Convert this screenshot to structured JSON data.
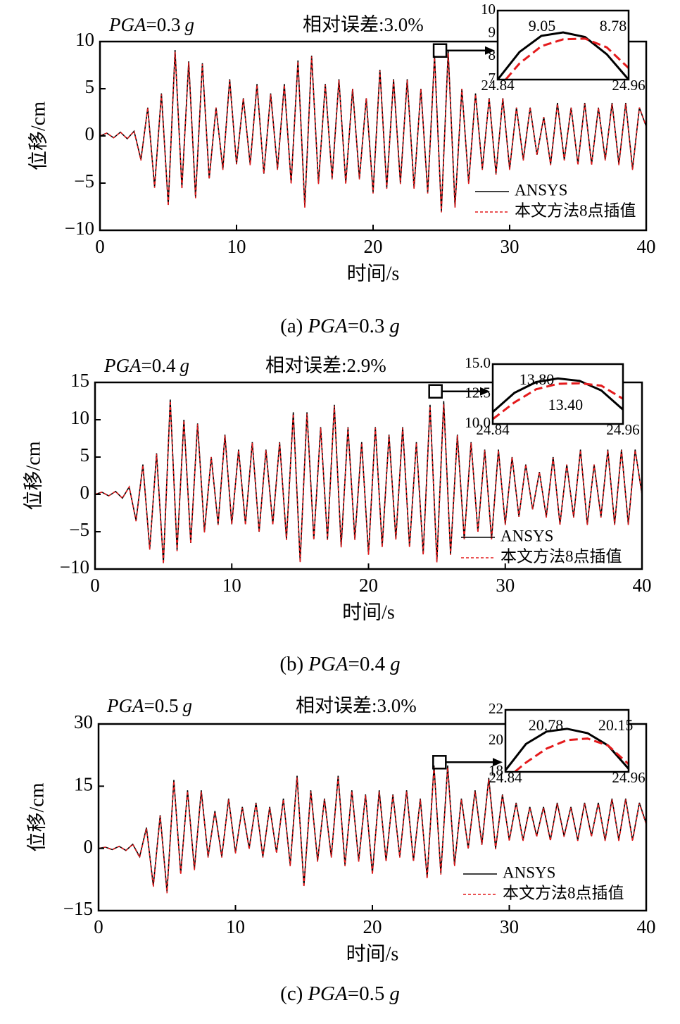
{
  "chart_data": [
    {
      "type": "line",
      "annotations": {
        "pga": {
          "var": "PGA",
          "rest": "=0.3",
          "unit": "g"
        },
        "error": "相对误差:3.0%"
      },
      "caption": {
        "label": "(a)",
        "var": "PGA",
        "rest": "=0.3",
        "unit": "g"
      },
      "xlabel": "时间/s",
      "ylabel": "位移/cm",
      "legend": "lower right",
      "xlim": [
        0,
        40
      ],
      "ylim": [
        -10,
        10
      ],
      "xticks": [
        0,
        10,
        20,
        30,
        40
      ],
      "yticks": [
        {
          "value": -10,
          "label": "−10"
        },
        {
          "value": -5,
          "label": "−5"
        },
        0,
        5,
        10
      ],
      "x": [
        0,
        0.5,
        1,
        1.5,
        2,
        2.5,
        3,
        3.5,
        4,
        4.5,
        5,
        5.5,
        6,
        6.5,
        7,
        7.5,
        8,
        8.5,
        9,
        9.5,
        10,
        10.5,
        11,
        11.5,
        12,
        12.5,
        13,
        13.5,
        14,
        14.5,
        15,
        15.5,
        16,
        16.5,
        17,
        17.5,
        18,
        18.5,
        19,
        19.5,
        20,
        20.5,
        21,
        21.5,
        22,
        22.5,
        23,
        23.5,
        24,
        24.5,
        25,
        25.5,
        26,
        26.5,
        27,
        27.5,
        28,
        28.5,
        29,
        29.5,
        30,
        30.5,
        31,
        31.5,
        32,
        32.5,
        33,
        33.5,
        34,
        34.5,
        35,
        35.5,
        36,
        36.5,
        37,
        37.5,
        38,
        38.5,
        39,
        39.5,
        40
      ],
      "series": [
        {
          "name": "ANSYS",
          "color": "#000000",
          "linestyle": "solid",
          "values": [
            0,
            0.3,
            -0.2,
            0.4,
            -0.3,
            0.5,
            -2.5,
            3,
            -5.4,
            4.5,
            -7.3,
            9.1,
            -5.5,
            7.9,
            -6.5,
            7.7,
            -4.5,
            3,
            -3.5,
            6,
            -3,
            4,
            -3,
            5.5,
            -4,
            4.5,
            -3.5,
            5.5,
            -5,
            8,
            -7.5,
            8.5,
            -5,
            5.5,
            -4.5,
            6,
            -5,
            5,
            -4.5,
            4,
            -6,
            7,
            -5.5,
            6,
            -5,
            6,
            -5.5,
            5,
            -6,
            8.5,
            -8,
            9,
            -7.5,
            5,
            -5,
            4.5,
            -3.5,
            4,
            -4,
            4,
            -3.5,
            3,
            -2.5,
            3,
            -2,
            2,
            -3,
            3.5,
            -2.5,
            3,
            -3,
            3.5,
            -3,
            3,
            -2.5,
            3.5,
            -3,
            3.5,
            -3.5,
            3,
            1
          ]
        },
        {
          "name": "本文方法8点插值",
          "color": "#e41a1c",
          "linestyle": "dashed",
          "values": [
            0,
            0.3,
            -0.2,
            0.4,
            -0.3,
            0.5,
            -2.6,
            3,
            -5.5,
            4.4,
            -7.4,
            8.9,
            -5.6,
            7.8,
            -6.6,
            7.6,
            -4.6,
            3,
            -3.6,
            5.9,
            -3,
            4,
            -3.1,
            5.4,
            -4,
            4.4,
            -3.6,
            5.4,
            -5.1,
            7.9,
            -7.6,
            8.4,
            -5.1,
            5.4,
            -4.6,
            5.9,
            -5.1,
            5,
            -4.6,
            4,
            -6.1,
            6.9,
            -5.6,
            5.9,
            -5.1,
            5.9,
            -5.6,
            5,
            -6.1,
            8.3,
            -8.1,
            8.8,
            -7.6,
            5,
            -5.1,
            4.4,
            -3.6,
            4,
            -4.1,
            4,
            -3.6,
            3,
            -2.6,
            3,
            -2,
            2,
            -3.1,
            3.4,
            -2.6,
            3,
            -3.1,
            3.4,
            -3.1,
            3,
            -2.6,
            3.4,
            -3.1,
            3.4,
            -3.6,
            3,
            1
          ]
        }
      ]
    },
    {
      "type": "line",
      "xlim": [
        24.84,
        24.96
      ],
      "ylim": [
        7,
        10
      ],
      "xticks": [
        24.84,
        24.96
      ],
      "yticks": [
        7,
        8,
        9,
        10
      ],
      "annotations": [
        "9.05",
        "8.78"
      ],
      "x": [
        24.84,
        24.86,
        24.88,
        24.9,
        24.92,
        24.94,
        24.96
      ],
      "series": [
        {
          "color": "#000000",
          "linestyle": "solid",
          "values": [
            7.0,
            8.2,
            8.9,
            9.05,
            8.85,
            8.1,
            7.0
          ]
        },
        {
          "color": "#e41a1c",
          "linestyle": "dashed",
          "values": [
            6.6,
            7.7,
            8.45,
            8.75,
            8.78,
            8.4,
            7.5
          ]
        }
      ]
    },
    {
      "type": "line",
      "annotations": {
        "pga": {
          "var": "PGA",
          "rest": "=0.4",
          "unit": "g"
        },
        "error": "相对误差:2.9%"
      },
      "caption": {
        "label": "(b)",
        "var": "PGA",
        "rest": "=0.4",
        "unit": "g"
      },
      "xlabel": "时间/s",
      "ylabel": "位移/cm",
      "legend": "lower right",
      "xlim": [
        0,
        40
      ],
      "ylim": [
        -10,
        15
      ],
      "xticks": [
        0,
        10,
        20,
        30,
        40
      ],
      "yticks": [
        {
          "value": -10,
          "label": "−10"
        },
        {
          "value": -5,
          "label": "−5"
        },
        0,
        5,
        10,
        15
      ],
      "x": [
        0,
        0.5,
        1,
        1.5,
        2,
        2.5,
        3,
        3.5,
        4,
        4.5,
        5,
        5.5,
        6,
        6.5,
        7,
        7.5,
        8,
        8.5,
        9,
        9.5,
        10,
        10.5,
        11,
        11.5,
        12,
        12.5,
        13,
        13.5,
        14,
        14.5,
        15,
        15.5,
        16,
        16.5,
        17,
        17.5,
        18,
        18.5,
        19,
        19.5,
        20,
        20.5,
        21,
        21.5,
        22,
        22.5,
        23,
        23.5,
        24,
        24.5,
        25,
        25.5,
        26,
        26.5,
        27,
        27.5,
        28,
        28.5,
        29,
        29.5,
        30,
        30.5,
        31,
        31.5,
        32,
        32.5,
        33,
        33.5,
        34,
        34.5,
        35,
        35.5,
        36,
        36.5,
        37,
        37.5,
        38,
        38.5,
        39,
        39.5,
        40
      ],
      "series": [
        {
          "name": "ANSYS",
          "color": "#000000",
          "linestyle": "solid",
          "values": [
            0,
            0.3,
            -0.2,
            0.4,
            -0.5,
            1,
            -3.5,
            4,
            -7.3,
            5.5,
            -9.2,
            12.7,
            -7.5,
            10,
            -6.5,
            9.5,
            -5,
            5,
            -4,
            8,
            -4,
            6,
            -4,
            7,
            -5,
            6,
            -4,
            7,
            -6,
            11,
            -9,
            11,
            -6,
            9,
            -6,
            12,
            -7,
            9,
            -6,
            7,
            -8,
            9,
            -7,
            8,
            -6,
            9,
            -7,
            7,
            -8,
            12,
            -9,
            12.5,
            -8,
            8,
            -6,
            7,
            -5,
            6,
            -6,
            6,
            -4,
            5,
            -3,
            4,
            -2,
            3,
            -3,
            5,
            -4,
            4,
            -3,
            6,
            -4,
            4,
            -3,
            6,
            -4,
            6,
            -4,
            6,
            0
          ]
        },
        {
          "name": "本文方法8点插值",
          "color": "#e41a1c",
          "linestyle": "dashed",
          "values": [
            0,
            0.3,
            -0.2,
            0.4,
            -0.5,
            1,
            -3.6,
            3.9,
            -7.4,
            5.4,
            -9.3,
            12.5,
            -7.6,
            9.9,
            -6.6,
            9.4,
            -5.1,
            5,
            -4.1,
            7.9,
            -4,
            5.9,
            -4.1,
            6.9,
            -5.1,
            5.9,
            -4.1,
            6.9,
            -6.1,
            10.8,
            -9.1,
            10.8,
            -6.1,
            8.9,
            -6.1,
            11.8,
            -7.1,
            8.9,
            -6.1,
            6.9,
            -8.1,
            8.9,
            -7.1,
            7.9,
            -6.1,
            8.9,
            -7.1,
            6.9,
            -8.1,
            11.8,
            -9.1,
            12.1,
            -8.1,
            7.9,
            -6.1,
            6.9,
            -5.1,
            5.9,
            -6.1,
            5.9,
            -4.1,
            5,
            -3,
            4,
            -2,
            3,
            -3.1,
            4.9,
            -4.1,
            4,
            -3.1,
            5.9,
            -4.1,
            4,
            -3.1,
            5.9,
            -4.1,
            5.9,
            -4.1,
            5.9,
            0
          ]
        }
      ]
    },
    {
      "type": "line",
      "xlim": [
        24.84,
        24.96
      ],
      "ylim": [
        10,
        15
      ],
      "xticks": [
        24.84,
        24.96
      ],
      "yticks": [
        {
          "value": 10,
          "label": "10.0"
        },
        12.5,
        {
          "value": 15,
          "label": "15.0"
        }
      ],
      "annotations": [
        "13.80",
        "13.40"
      ],
      "x": [
        24.84,
        24.86,
        24.88,
        24.9,
        24.92,
        24.94,
        24.96
      ],
      "series": [
        {
          "color": "#000000",
          "linestyle": "solid",
          "values": [
            11.0,
            12.6,
            13.5,
            13.8,
            13.6,
            12.8,
            11.2
          ]
        },
        {
          "color": "#e41a1c",
          "linestyle": "dashed",
          "values": [
            10.4,
            11.8,
            12.9,
            13.35,
            13.4,
            13.2,
            12.1
          ]
        }
      ]
    },
    {
      "type": "line",
      "annotations": {
        "pga": {
          "var": "PGA",
          "rest": "=0.5",
          "unit": "g"
        },
        "error": "相对误差:3.0%"
      },
      "caption": {
        "label": "(c)",
        "var": "PGA",
        "rest": "=0.5",
        "unit": "g"
      },
      "xlabel": "时间/s",
      "ylabel": "位移/cm",
      "legend": "lower right",
      "xlim": [
        0,
        40
      ],
      "ylim": [
        -15,
        30
      ],
      "xticks": [
        0,
        10,
        20,
        30,
        40
      ],
      "yticks": [
        {
          "value": -15,
          "label": "−15"
        },
        0,
        15,
        30
      ],
      "x": [
        0,
        0.5,
        1,
        1.5,
        2,
        2.5,
        3,
        3.5,
        4,
        4.5,
        5,
        5.5,
        6,
        6.5,
        7,
        7.5,
        8,
        8.5,
        9,
        9.5,
        10,
        10.5,
        11,
        11.5,
        12,
        12.5,
        13,
        13.5,
        14,
        14.5,
        15,
        15.5,
        16,
        16.5,
        17,
        17.5,
        18,
        18.5,
        19,
        19.5,
        20,
        20.5,
        21,
        21.5,
        22,
        22.5,
        23,
        23.5,
        24,
        24.5,
        25,
        25.5,
        26,
        26.5,
        27,
        27.5,
        28,
        28.5,
        29,
        29.5,
        30,
        30.5,
        31,
        31.5,
        32,
        32.5,
        33,
        33.5,
        34,
        34.5,
        35,
        35.5,
        36,
        36.5,
        37,
        37.5,
        38,
        38.5,
        39,
        39.5,
        40
      ],
      "series": [
        {
          "name": "ANSYS",
          "color": "#000000",
          "linestyle": "solid",
          "values": [
            0,
            0.3,
            -0.3,
            0.5,
            -0.5,
            1,
            -2,
            5,
            -9,
            8,
            -10.5,
            16.5,
            -6,
            14,
            -5,
            14,
            -2,
            9,
            -2,
            12,
            -1,
            10,
            0,
            11,
            -2,
            10,
            -1,
            12,
            -4,
            17.5,
            -9,
            14,
            -3,
            12,
            -2,
            17.5,
            -4,
            14,
            -3,
            13,
            -6,
            14,
            -3,
            13,
            -2,
            14,
            -3,
            12,
            -7,
            20,
            -6,
            20,
            -4,
            12,
            0,
            14,
            1,
            17,
            0,
            13,
            2,
            11,
            2,
            10,
            3,
            10,
            2,
            11,
            3,
            10,
            2,
            11,
            3,
            11,
            2,
            12,
            2,
            12,
            2,
            11,
            6
          ]
        },
        {
          "name": "本文方法8点插值",
          "color": "#e41a1c",
          "linestyle": "dashed",
          "values": [
            0,
            0.3,
            -0.3,
            0.5,
            -0.5,
            1,
            -2.2,
            4.8,
            -9.3,
            7.8,
            -10.8,
            16.2,
            -6.3,
            13.8,
            -5.3,
            13.7,
            -2.2,
            8.8,
            -2.2,
            11.8,
            -1.2,
            9.8,
            -0.2,
            10.8,
            -2.2,
            9.8,
            -1.2,
            11.8,
            -4.3,
            17.1,
            -9.3,
            13.7,
            -3.2,
            11.8,
            -2.2,
            17.1,
            -4.3,
            13.8,
            -3.2,
            12.8,
            -6.3,
            13.7,
            -3.2,
            12.8,
            -2.2,
            13.7,
            -3.2,
            11.8,
            -7.3,
            19.6,
            -6.3,
            19.5,
            -4.3,
            11.8,
            -0.2,
            13.7,
            0.8,
            16.7,
            -0.2,
            12.8,
            1.8,
            10.8,
            1.8,
            9.8,
            2.8,
            9.8,
            1.8,
            10.8,
            2.8,
            9.8,
            1.8,
            10.8,
            2.8,
            10.8,
            1.8,
            11.8,
            1.8,
            11.8,
            1.8,
            10.8,
            5.8
          ]
        }
      ]
    },
    {
      "type": "line",
      "xlim": [
        24.84,
        24.96
      ],
      "ylim": [
        18,
        22
      ],
      "xticks": [
        24.84,
        24.96
      ],
      "yticks": [
        18,
        20,
        22
      ],
      "annotations": [
        "20.78",
        "20.15"
      ],
      "x": [
        24.84,
        24.86,
        24.88,
        24.9,
        24.92,
        24.94,
        24.96
      ],
      "series": [
        {
          "color": "#000000",
          "linestyle": "solid",
          "values": [
            18.1,
            19.8,
            20.6,
            20.78,
            20.5,
            19.7,
            18.2
          ]
        },
        {
          "color": "#e41a1c",
          "linestyle": "dashed",
          "values": [
            17.5,
            18.6,
            19.5,
            20.05,
            20.15,
            19.7,
            18.5
          ]
        }
      ]
    }
  ]
}
